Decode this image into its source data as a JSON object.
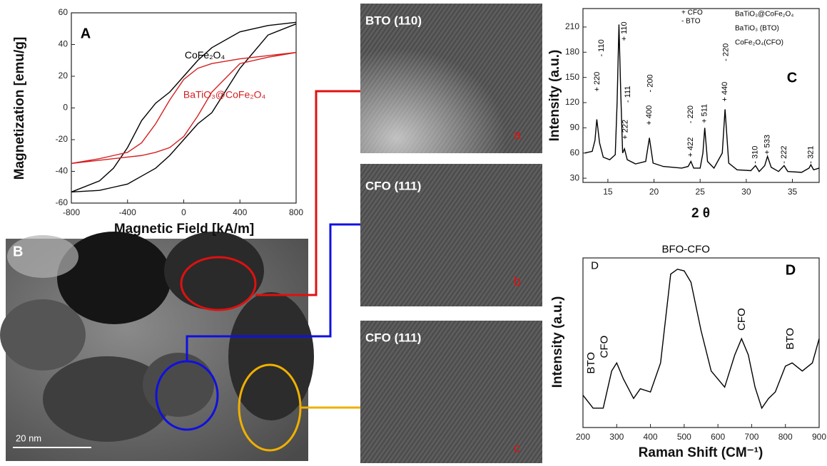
{
  "chart_data": [
    {
      "type": "line",
      "label": "A",
      "x_label": "Magnetic Field [kA/m]",
      "y_label": "Magnetization [emu/g]",
      "x": [
        800,
        600,
        400,
        200,
        100,
        0,
        -100,
        -200,
        -300,
        -400,
        -500,
        -600,
        -800,
        -600,
        -500,
        -400,
        -300,
        -200,
        -100,
        0,
        100,
        200,
        400,
        600,
        800
      ],
      "series": [
        {
          "name": "CoFe₂O₄",
          "color": "#000000",
          "values": [
            54,
            52,
            48,
            38,
            30,
            20,
            10,
            3,
            -8,
            -25,
            -38,
            -46,
            -53,
            -52,
            -50,
            -48,
            -43,
            -38,
            -30,
            -20,
            -10,
            -3,
            25,
            46,
            53
          ]
        },
        {
          "name": "BaTiO₃@CoFe₂O₄",
          "color": "#d42020",
          "values": [
            35,
            33,
            31,
            28,
            25,
            18,
            5,
            -10,
            -22,
            -28,
            -30,
            -32,
            -35,
            -33,
            -32,
            -31,
            -30,
            -28,
            -25,
            -18,
            -5,
            10,
            28,
            32,
            35
          ]
        }
      ],
      "xlim": [
        -800,
        800
      ],
      "ylim": [
        -60,
        60
      ],
      "xticks": [
        -800,
        -400,
        0,
        400,
        800
      ],
      "yticks": [
        -60,
        -40,
        -20,
        0,
        20,
        40,
        60
      ]
    },
    {
      "type": "line",
      "label": "C",
      "x_label": "2 θ",
      "y_label": "Intensity (a.u.)",
      "x": [
        12.5,
        13.3,
        13.6,
        13.8,
        14.1,
        14.5,
        15.2,
        15.8,
        16.0,
        16.2,
        16.4,
        16.6,
        16.8,
        17.1,
        18,
        19.1,
        19.5,
        19.9,
        21,
        23,
        23.7,
        24,
        24.3,
        25,
        25.3,
        25.5,
        25.8,
        26.5,
        27.4,
        27.7,
        28.1,
        29,
        30.5,
        31,
        31.4,
        32,
        32.3,
        32.7,
        33.5,
        34.1,
        34.5,
        36,
        36.8,
        37,
        37.3,
        37.9
      ],
      "series": [
        {
          "name": "",
          "color": "#000000",
          "values": [
            60,
            62,
            75,
            100,
            72,
            55,
            52,
            58,
            120,
            213,
            130,
            60,
            65,
            52,
            47,
            50,
            78,
            48,
            44,
            42,
            44,
            50,
            42,
            42,
            60,
            90,
            50,
            42,
            60,
            112,
            48,
            40,
            39,
            45,
            38,
            45,
            56,
            43,
            38,
            45,
            38,
            37,
            42,
            46,
            40,
            42
          ]
        }
      ],
      "xlim": [
        12.3,
        37.9
      ],
      "ylim": [
        25,
        232
      ],
      "xticks": [
        15,
        20,
        25,
        30,
        35
      ],
      "yticks": [
        30,
        60,
        90,
        120,
        150,
        180,
        210
      ],
      "annotations": [
        "+ 220",
        "- 110",
        "+ 110",
        "+ 222",
        "- 111",
        "+ 400",
        "- 200",
        "+ 422",
        "- 220",
        "+ 511",
        "+ 440",
        "- 220",
        "- 310",
        "+ 533",
        "- 222",
        "- 321"
      ],
      "legend_texts": [
        "+ CFO",
        "- BTO",
        "BaTiO₃@CoFe₂O₄",
        "BaTiO₃ (BTO)",
        "CoFe₂O₄(CFO)"
      ]
    },
    {
      "type": "line",
      "label": "D",
      "x_label": "Raman Shift (CM⁻¹)",
      "y_label": "Intensity (a.u.)",
      "x": [
        200,
        215,
        230,
        260,
        285,
        300,
        320,
        350,
        370,
        400,
        430,
        460,
        480,
        500,
        520,
        550,
        580,
        620,
        650,
        670,
        690,
        710,
        730,
        750,
        770,
        800,
        820,
        850,
        880,
        900
      ],
      "series": [
        {
          "name": "",
          "color": "#000000",
          "values": [
            20,
            16,
            12,
            12,
            35,
            40,
            30,
            18,
            24,
            22,
            40,
            95,
            98,
            97,
            90,
            60,
            35,
            25,
            45,
            55,
            45,
            25,
            12,
            18,
            22,
            38,
            40,
            35,
            40,
            55
          ]
        }
      ],
      "xlim": [
        200,
        900
      ],
      "ylim": [
        0,
        105
      ],
      "xticks": [
        200,
        300,
        400,
        500,
        600,
        700,
        800,
        900
      ],
      "annotations": [
        "BTO",
        "CFO",
        "BFO-CFO",
        "CFO",
        "BTO",
        "D"
      ]
    }
  ],
  "images": [
    {
      "label": "B",
      "scale_bar": "20 nm"
    },
    {
      "label": "BTO (110)",
      "letter": "a"
    },
    {
      "label": "CFO (111)",
      "letter": "b"
    },
    {
      "label": "CFO (111)",
      "letter": "c"
    }
  ]
}
